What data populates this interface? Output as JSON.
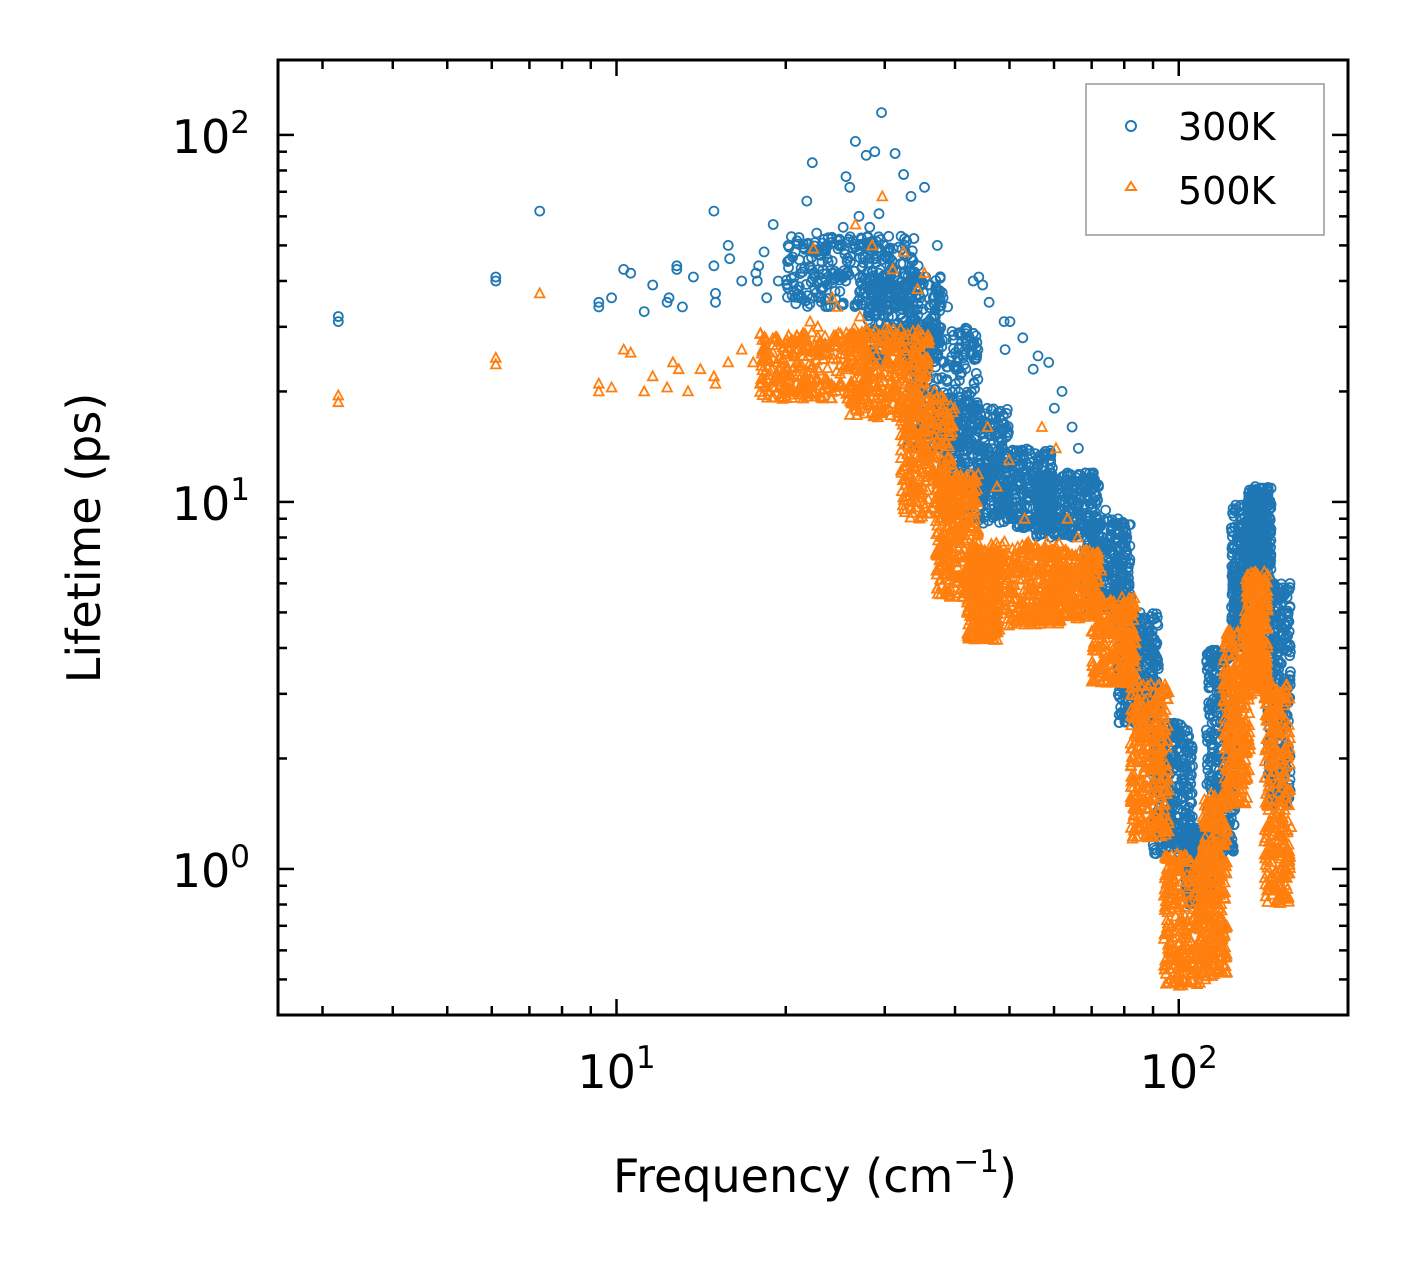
{
  "chart_data": {
    "type": "scatter",
    "scale": {
      "x": "log",
      "y": "log"
    },
    "xlabel": "Frequency (cm",
    "xlabel_sup": "−1",
    "xlabel_end": ")",
    "ylabel": "Lifetime (ps)",
    "xlim": [
      2.5,
      200
    ],
    "ylim": [
      0.4,
      160
    ],
    "x_ticks": [
      {
        "value": 10,
        "base": "10",
        "exp": "1"
      },
      {
        "value": 100,
        "base": "10",
        "exp": "2"
      }
    ],
    "y_ticks": [
      {
        "value": 1,
        "base": "10",
        "exp": "0"
      },
      {
        "value": 10,
        "base": "10",
        "exp": "1"
      },
      {
        "value": 100,
        "base": "10",
        "exp": "2"
      }
    ],
    "legend_position": "top-right",
    "series": [
      {
        "name": "300K",
        "marker": "circle",
        "color": "#1f77b4",
        "points": [
          [
            3.2,
            32
          ],
          [
            3.2,
            31
          ],
          [
            6.1,
            41
          ],
          [
            6.1,
            40
          ],
          [
            7.3,
            62
          ],
          [
            9.3,
            35
          ],
          [
            9.3,
            34
          ],
          [
            9.8,
            36
          ],
          [
            10.3,
            43
          ],
          [
            10.6,
            42
          ],
          [
            11.2,
            33
          ],
          [
            11.6,
            39
          ],
          [
            12.3,
            35
          ],
          [
            12.4,
            36
          ],
          [
            12.8,
            43
          ],
          [
            12.8,
            44
          ],
          [
            13.1,
            34
          ],
          [
            13.7,
            41
          ],
          [
            14.9,
            44
          ],
          [
            14.9,
            62
          ],
          [
            15,
            37
          ],
          [
            15,
            35
          ],
          [
            15.8,
            50
          ],
          [
            15.9,
            46
          ],
          [
            16.7,
            40
          ],
          [
            17.7,
            42
          ],
          [
            17.8,
            40
          ],
          [
            17.9,
            44
          ],
          [
            18.3,
            48
          ],
          [
            18.5,
            36
          ],
          [
            19,
            57
          ],
          [
            19.4,
            40
          ],
          [
            20.2,
            50
          ],
          [
            20.7,
            41
          ],
          [
            21.8,
            66
          ],
          [
            22.3,
            84
          ],
          [
            22.7,
            54
          ],
          [
            23.1,
            47
          ],
          [
            23.8,
            45
          ],
          [
            24.2,
            51
          ],
          [
            24.9,
            52
          ],
          [
            25.3,
            56
          ],
          [
            25.6,
            77
          ],
          [
            26,
            72
          ],
          [
            26.6,
            96
          ],
          [
            27,
            60
          ],
          [
            27.3,
            52
          ],
          [
            27.8,
            88
          ],
          [
            28.2,
            56
          ],
          [
            28.8,
            90
          ],
          [
            29.3,
            61
          ],
          [
            29.6,
            115
          ],
          [
            30.4,
            46
          ],
          [
            31,
            43
          ],
          [
            31.3,
            89
          ],
          [
            32.4,
            78
          ],
          [
            33.4,
            68
          ],
          [
            34.4,
            44
          ],
          [
            35.3,
            72
          ],
          [
            36.1,
            39
          ],
          [
            37.2,
            50
          ],
          [
            38.1,
            36
          ],
          [
            38.8,
            34
          ],
          [
            41.8,
            27
          ],
          [
            43.1,
            40
          ],
          [
            44.1,
            41
          ],
          [
            44.8,
            39
          ],
          [
            46,
            35
          ],
          [
            48.9,
            31
          ],
          [
            49.1,
            26
          ],
          [
            50.1,
            31
          ],
          [
            52.8,
            28
          ],
          [
            55.1,
            23
          ],
          [
            56.2,
            25
          ],
          [
            58.7,
            24
          ],
          [
            60.1,
            18
          ],
          [
            62,
            20
          ],
          [
            64.6,
            16
          ],
          [
            66.3,
            14
          ],
          [
            68.2,
            12
          ],
          [
            70.5,
            12
          ],
          [
            72,
            11
          ],
          [
            74.1,
            9.5
          ],
          [
            75.6,
            8
          ],
          [
            78.2,
            6.8
          ],
          [
            80.4,
            6.2
          ],
          [
            82.2,
            5.5
          ],
          [
            84,
            4.8
          ],
          [
            87.1,
            3.8
          ],
          [
            90,
            3
          ],
          [
            92.2,
            2.2
          ],
          [
            95.1,
            1.6
          ],
          [
            98.5,
            1.3
          ],
          [
            102.2,
            1.1
          ],
          [
            106.5,
            0.95
          ],
          [
            110.3,
            0.8
          ],
          [
            114.6,
            1
          ],
          [
            118.7,
            1.6
          ],
          [
            123,
            2.8
          ],
          [
            126.4,
            4.5
          ],
          [
            130.2,
            7
          ],
          [
            134.1,
            9.5
          ],
          [
            137.5,
            10.5
          ],
          [
            140.6,
            10
          ],
          [
            144.1,
            8
          ],
          [
            147.5,
            6
          ],
          [
            150.3,
            4
          ],
          [
            152.8,
            3
          ],
          [
            155.2,
            2.2
          ],
          [
            157,
            1.7
          ]
        ],
        "bands": [
          {
            "from": 20,
            "to": 34,
            "lo": 34,
            "hi": 53
          },
          {
            "from": 28,
            "to": 38,
            "lo": 24,
            "hi": 42
          },
          {
            "from": 33,
            "to": 44,
            "lo": 14,
            "hi": 30
          },
          {
            "from": 38,
            "to": 50,
            "lo": 9,
            "hi": 18
          },
          {
            "from": 44,
            "to": 60,
            "lo": 8.5,
            "hi": 14
          },
          {
            "from": 55,
            "to": 72,
            "lo": 8,
            "hi": 12
          },
          {
            "from": 68,
            "to": 82,
            "lo": 5,
            "hi": 9
          },
          {
            "from": 78,
            "to": 92,
            "lo": 2.5,
            "hi": 5
          },
          {
            "from": 90,
            "to": 106,
            "lo": 1.1,
            "hi": 2.5
          },
          {
            "from": 103,
            "to": 114,
            "lo": 0.8,
            "hi": 1.3
          },
          {
            "from": 112,
            "to": 126,
            "lo": 1.1,
            "hi": 4
          },
          {
            "from": 124,
            "to": 136,
            "lo": 4,
            "hi": 10
          },
          {
            "from": 133,
            "to": 146,
            "lo": 6,
            "hi": 11
          },
          {
            "from": 144,
            "to": 158,
            "lo": 1.5,
            "hi": 6
          }
        ]
      },
      {
        "name": "500K",
        "marker": "triangle",
        "color": "#ff7f0e",
        "points": [
          [
            3.2,
            19.5
          ],
          [
            3.2,
            18.7
          ],
          [
            6.1,
            24.7
          ],
          [
            6.1,
            23.7
          ],
          [
            7.3,
            37
          ],
          [
            9.3,
            21
          ],
          [
            9.3,
            20
          ],
          [
            9.8,
            20.5
          ],
          [
            10.3,
            26
          ],
          [
            10.6,
            25.5
          ],
          [
            11.2,
            20
          ],
          [
            11.6,
            22
          ],
          [
            12.3,
            20.5
          ],
          [
            12.6,
            24
          ],
          [
            12.9,
            23
          ],
          [
            13.4,
            20
          ],
          [
            14.1,
            23
          ],
          [
            14.9,
            22
          ],
          [
            15,
            21
          ],
          [
            15.8,
            24
          ],
          [
            16.7,
            26
          ],
          [
            17.5,
            24
          ],
          [
            18,
            21
          ],
          [
            18.6,
            20
          ],
          [
            19.4,
            23
          ],
          [
            20.2,
            27
          ],
          [
            20.7,
            25
          ],
          [
            21.3,
            22
          ],
          [
            22.1,
            31
          ],
          [
            22.4,
            49
          ],
          [
            22.8,
            30
          ],
          [
            23.5,
            27
          ],
          [
            24.2,
            36
          ],
          [
            24.7,
            34
          ],
          [
            25.3,
            26
          ],
          [
            26,
            28
          ],
          [
            26.6,
            57
          ],
          [
            27.1,
            32
          ],
          [
            27.9,
            29
          ],
          [
            28.5,
            50
          ],
          [
            29,
            27
          ],
          [
            29.7,
            68
          ],
          [
            30.2,
            26
          ],
          [
            31,
            43
          ],
          [
            31.5,
            20
          ],
          [
            32.4,
            48
          ],
          [
            33.4,
            18
          ],
          [
            34.3,
            38
          ],
          [
            35.3,
            42
          ],
          [
            36.8,
            20
          ],
          [
            38.1,
            11
          ],
          [
            40.1,
            8
          ],
          [
            42.3,
            9
          ],
          [
            45.7,
            16
          ],
          [
            47.5,
            11
          ],
          [
            49.9,
            13
          ],
          [
            53.2,
            9
          ],
          [
            57.1,
            16
          ],
          [
            60.5,
            14
          ],
          [
            63.4,
            9
          ],
          [
            66.1,
            8
          ],
          [
            69.3,
            7
          ],
          [
            72.8,
            6.5
          ],
          [
            76.3,
            4.5
          ],
          [
            79.8,
            4
          ],
          [
            82.6,
            3.5
          ],
          [
            85.3,
            3
          ],
          [
            88.2,
            2.3
          ],
          [
            91.1,
            1.8
          ],
          [
            94.4,
            1.3
          ],
          [
            97.5,
            0.9
          ],
          [
            100.3,
            0.72
          ],
          [
            104.6,
            0.6
          ],
          [
            108.1,
            0.55
          ],
          [
            111.5,
            0.5
          ],
          [
            115.1,
            0.6
          ],
          [
            118.4,
            0.85
          ],
          [
            122.1,
            1.5
          ],
          [
            125.6,
            2.5
          ],
          [
            129,
            3.5
          ],
          [
            132.6,
            4.6
          ],
          [
            136,
            5.5
          ],
          [
            139.7,
            4.8
          ],
          [
            142.8,
            3.3
          ],
          [
            146.1,
            2.2
          ],
          [
            149.3,
            1.4
          ],
          [
            152.2,
            1
          ],
          [
            155.4,
            0.85
          ],
          [
            157.3,
            1.1
          ],
          [
            158.5,
            1.3
          ]
        ],
        "bands": [
          {
            "from": 18,
            "to": 28,
            "lo": 19,
            "hi": 29
          },
          {
            "from": 26,
            "to": 36,
            "lo": 17,
            "hi": 30
          },
          {
            "from": 32,
            "to": 40,
            "lo": 9,
            "hi": 20
          },
          {
            "from": 37,
            "to": 44,
            "lo": 5.5,
            "hi": 12
          },
          {
            "from": 42,
            "to": 48,
            "lo": 4.2,
            "hi": 7.5
          },
          {
            "from": 46,
            "to": 62,
            "lo": 4.6,
            "hi": 7.8
          },
          {
            "from": 58,
            "to": 72,
            "lo": 4.8,
            "hi": 7.4
          },
          {
            "from": 70,
            "to": 84,
            "lo": 3.2,
            "hi": 5.5
          },
          {
            "from": 82,
            "to": 96,
            "lo": 1.2,
            "hi": 3.2
          },
          {
            "from": 94,
            "to": 112,
            "lo": 0.48,
            "hi": 1.1
          },
          {
            "from": 110,
            "to": 122,
            "lo": 0.5,
            "hi": 1.6
          },
          {
            "from": 120,
            "to": 134,
            "lo": 1.5,
            "hi": 4.5
          },
          {
            "from": 131,
            "to": 144,
            "lo": 3,
            "hi": 6.5
          },
          {
            "from": 142,
            "to": 158,
            "lo": 0.8,
            "hi": 3.2
          }
        ]
      }
    ]
  }
}
